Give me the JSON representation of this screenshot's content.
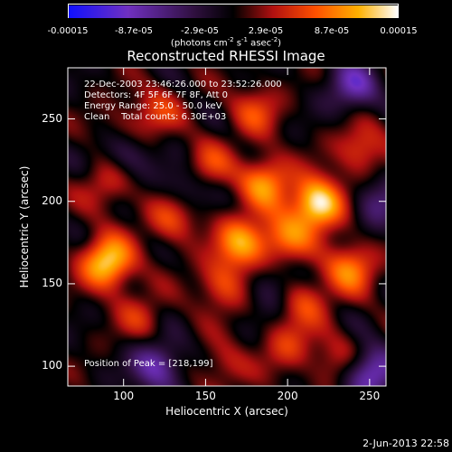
{
  "colorbar": {
    "min": -0.00015,
    "max": 0.00015,
    "ticks": [
      "-0.00015",
      "-8.7e-05",
      "-2.9e-05",
      "2.9e-05",
      "8.7e-05",
      "0.00015"
    ],
    "unit_prefix": "(photons cm",
    "unit_exp1": "-2",
    "unit_mid": " s",
    "unit_exp2": "-1",
    "unit_mid2": " asec",
    "unit_exp3": "-2",
    "unit_suffix": ")",
    "colors": [
      "#1010ff",
      "#7030c0",
      "#301040",
      "#000000",
      "#b01010",
      "#ff5000",
      "#ffb000",
      "#ffffff"
    ]
  },
  "title": "Reconstructed RHESSI Image",
  "info": {
    "time_range": "22-Dec-2003 23:46:26.000 to 23:52:26.000",
    "detectors": "Detectors: 4F 5F 6F 7F 8F, Att 0",
    "energy": "Energy Range: 25.0 - 50.0 keV",
    "clean": "Clean    Total counts: 6.30E+03"
  },
  "peak": "Position of Peak = [218,199]",
  "date_stamp": "2-Jun-2013 22:58",
  "chart_data": {
    "type": "heatmap",
    "title": "Reconstructed RHESSI Image",
    "xlabel": "Heliocentric X (arcsec)",
    "ylabel": "Heliocentric Y (arcsec)",
    "xlim": [
      66,
      260
    ],
    "ylim": [
      88,
      281
    ],
    "xticks": [
      100,
      150,
      200,
      250
    ],
    "yticks": [
      100,
      150,
      200,
      250
    ],
    "peak": [
      218,
      199
    ],
    "sources": [
      {
        "x": 218,
        "y": 199,
        "amp": 1.0
      },
      {
        "x": 90,
        "y": 163,
        "amp": 0.9
      },
      {
        "x": 172,
        "y": 175,
        "amp": 0.7
      },
      {
        "x": 198,
        "y": 178,
        "amp": 0.55
      },
      {
        "x": 150,
        "y": 220,
        "amp": 0.5
      },
      {
        "x": 130,
        "y": 190,
        "amp": 0.45
      },
      {
        "x": 186,
        "y": 212,
        "amp": 0.65
      },
      {
        "x": 180,
        "y": 255,
        "amp": 0.4
      },
      {
        "x": 120,
        "y": 255,
        "amp": 0.35
      },
      {
        "x": 245,
        "y": 232,
        "amp": 0.45
      },
      {
        "x": 238,
        "y": 160,
        "amp": 0.6
      },
      {
        "x": 210,
        "y": 140,
        "amp": 0.4
      },
      {
        "x": 160,
        "y": 150,
        "amp": 0.45
      },
      {
        "x": 110,
        "y": 130,
        "amp": 0.3
      },
      {
        "x": 200,
        "y": 112,
        "amp": 0.35
      },
      {
        "x": 160,
        "y": 100,
        "amp": 0.3
      },
      {
        "x": 230,
        "y": 105,
        "amp": 0.3
      },
      {
        "x": 90,
        "y": 210,
        "amp": 0.35
      },
      {
        "x": 98,
        "y": 243,
        "amp": 0.25
      },
      {
        "x": 120,
        "y": 100,
        "amp": -0.6
      },
      {
        "x": 250,
        "y": 96,
        "amp": -0.7
      },
      {
        "x": 240,
        "y": 270,
        "amp": -0.55
      },
      {
        "x": 140,
        "y": 210,
        "amp": -0.45
      },
      {
        "x": 255,
        "y": 200,
        "amp": -0.4
      },
      {
        "x": 100,
        "y": 230,
        "amp": -0.4
      },
      {
        "x": 190,
        "y": 150,
        "amp": -0.3
      }
    ]
  }
}
